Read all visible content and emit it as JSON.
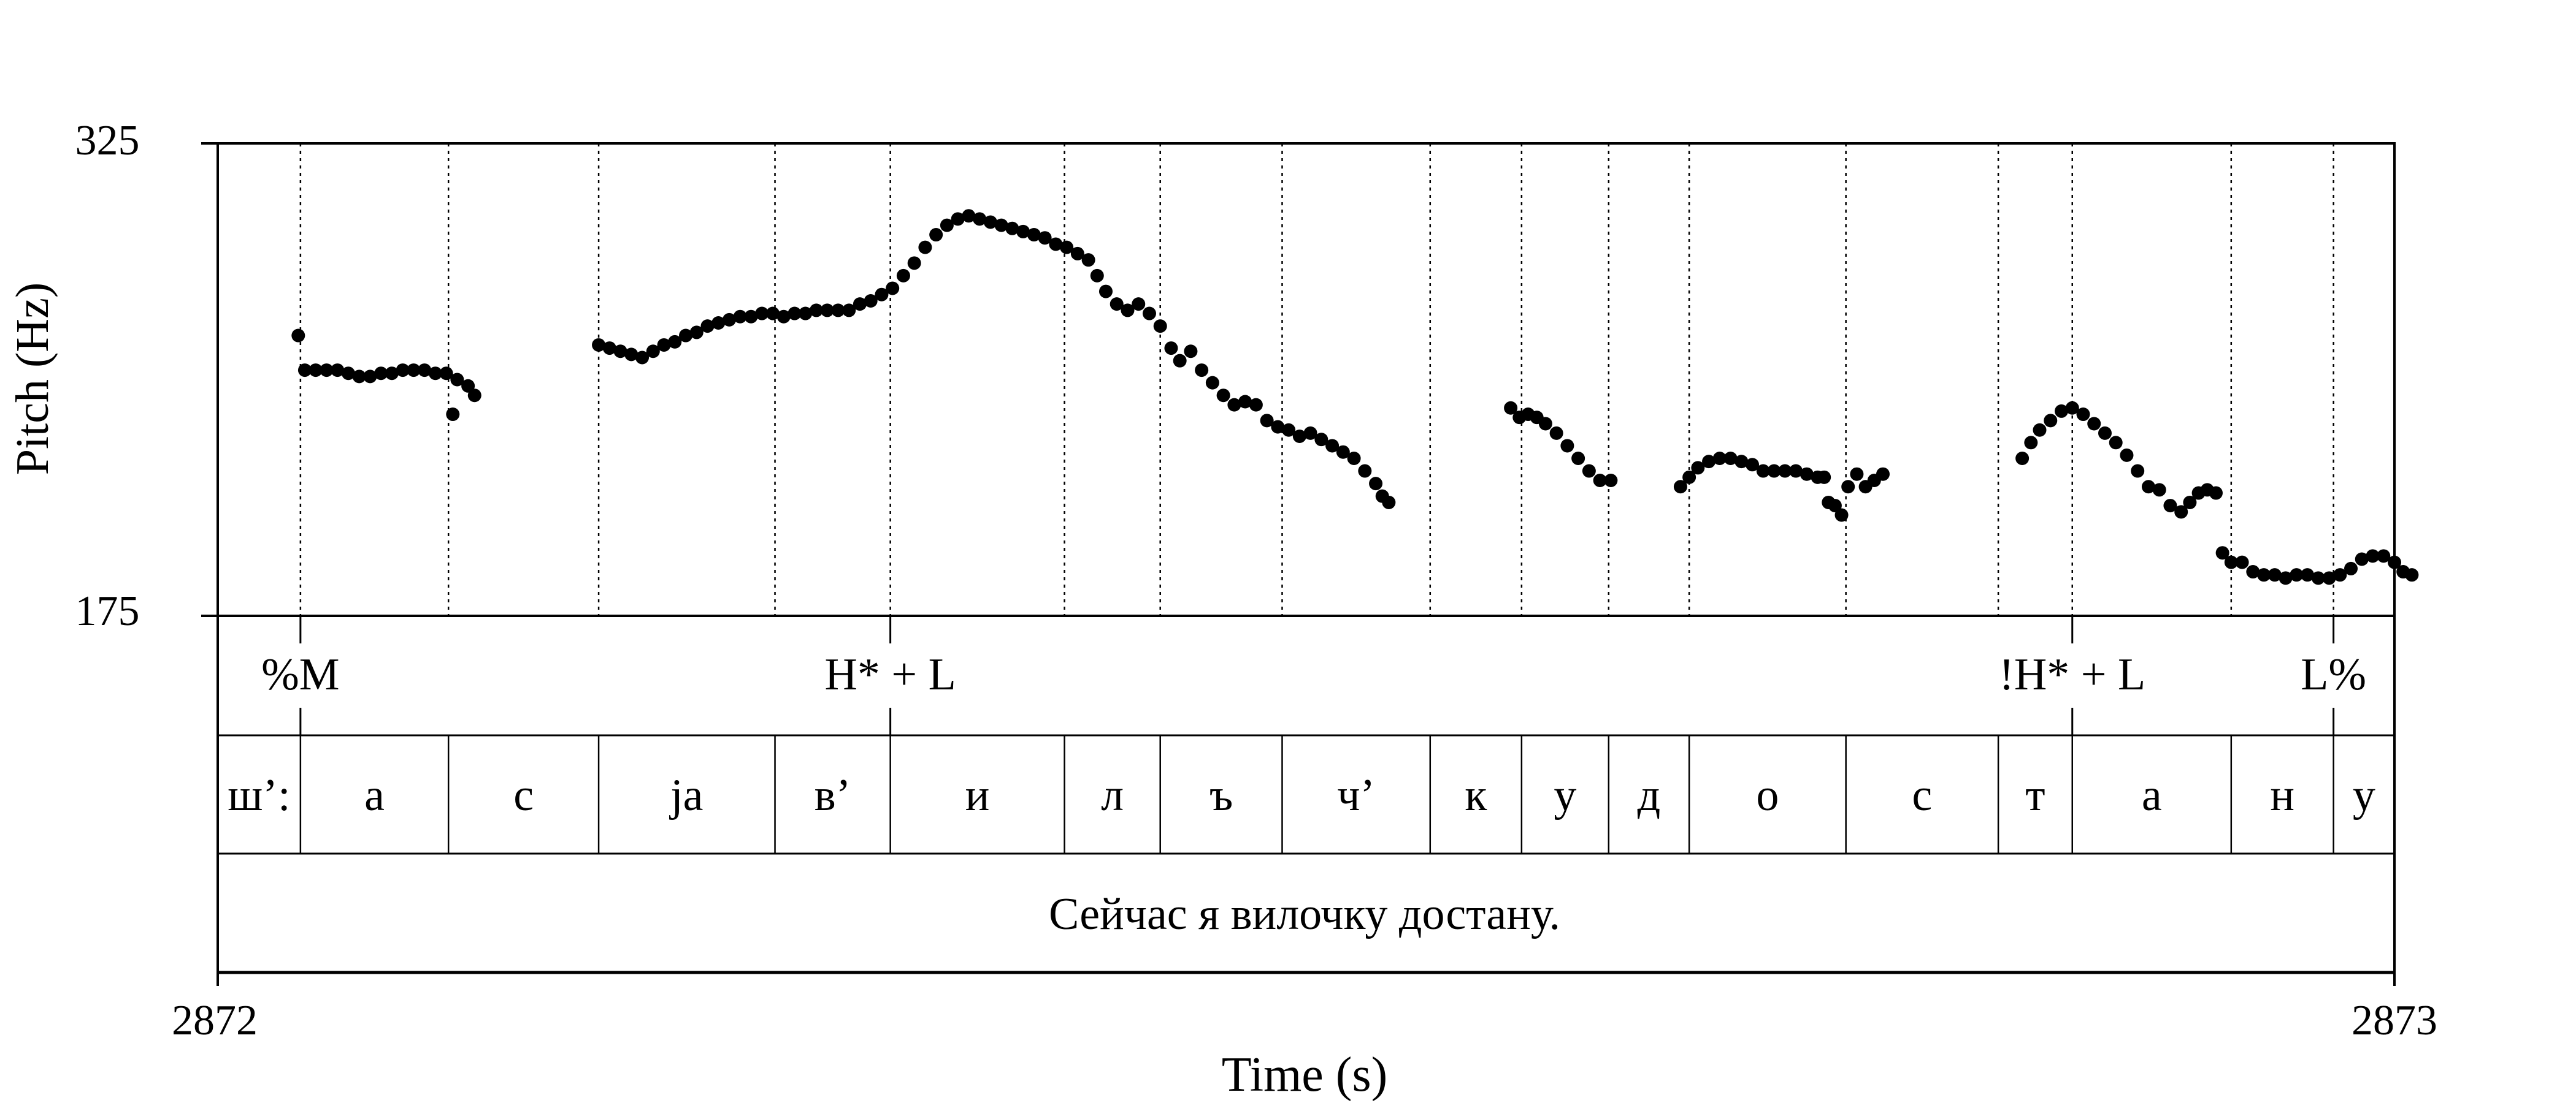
{
  "chart_data": {
    "type": "scatter",
    "xlabel": "Time (s)",
    "ylabel": "Pitch (Hz)",
    "xlim": [
      2872,
      2873
    ],
    "ylim": [
      175,
      325
    ],
    "x_tick_labels": [
      "2872",
      "2873"
    ],
    "y_tick_labels": [
      "325",
      "175"
    ],
    "series": [
      {
        "values": [
          [
            0.037,
            264
          ],
          [
            0.04,
            253
          ],
          [
            0.045,
            253
          ],
          [
            0.05,
            253
          ],
          [
            0.055,
            253
          ],
          [
            0.06,
            252
          ],
          [
            0.065,
            251
          ],
          [
            0.07,
            251
          ],
          [
            0.075,
            252
          ],
          [
            0.08,
            252
          ],
          [
            0.085,
            253
          ],
          [
            0.09,
            253
          ],
          [
            0.095,
            253
          ],
          [
            0.1,
            252
          ],
          [
            0.105,
            252
          ],
          [
            0.11,
            250
          ],
          [
            0.115,
            248
          ],
          [
            0.118,
            245
          ],
          [
            0.108,
            239
          ],
          [
            0.175,
            261
          ],
          [
            0.18,
            260
          ],
          [
            0.185,
            259
          ],
          [
            0.19,
            258
          ],
          [
            0.195,
            257
          ],
          [
            0.2,
            259
          ],
          [
            0.205,
            261
          ],
          [
            0.21,
            262
          ],
          [
            0.215,
            264
          ],
          [
            0.22,
            265
          ],
          [
            0.225,
            267
          ],
          [
            0.23,
            268
          ],
          [
            0.235,
            269
          ],
          [
            0.24,
            270
          ],
          [
            0.245,
            270
          ],
          [
            0.25,
            271
          ],
          [
            0.255,
            271
          ],
          [
            0.26,
            270
          ],
          [
            0.265,
            271
          ],
          [
            0.27,
            271
          ],
          [
            0.275,
            272
          ],
          [
            0.28,
            272
          ],
          [
            0.285,
            272
          ],
          [
            0.29,
            272
          ],
          [
            0.295,
            274
          ],
          [
            0.3,
            275
          ],
          [
            0.305,
            277
          ],
          [
            0.31,
            279
          ],
          [
            0.315,
            283
          ],
          [
            0.32,
            287
          ],
          [
            0.325,
            292
          ],
          [
            0.33,
            296
          ],
          [
            0.335,
            299
          ],
          [
            0.34,
            301
          ],
          [
            0.345,
            302
          ],
          [
            0.35,
            301
          ],
          [
            0.355,
            300
          ],
          [
            0.36,
            299
          ],
          [
            0.365,
            298
          ],
          [
            0.37,
            297
          ],
          [
            0.375,
            296
          ],
          [
            0.38,
            295
          ],
          [
            0.385,
            293
          ],
          [
            0.39,
            292
          ],
          [
            0.395,
            290
          ],
          [
            0.4,
            288
          ],
          [
            0.404,
            283
          ],
          [
            0.408,
            278
          ],
          [
            0.413,
            274
          ],
          [
            0.418,
            272
          ],
          [
            0.423,
            274
          ],
          [
            0.428,
            271
          ],
          [
            0.433,
            267
          ],
          [
            0.438,
            260
          ],
          [
            0.442,
            256
          ],
          [
            0.447,
            259
          ],
          [
            0.452,
            253
          ],
          [
            0.457,
            249
          ],
          [
            0.462,
            245
          ],
          [
            0.467,
            242
          ],
          [
            0.472,
            243
          ],
          [
            0.477,
            242
          ],
          [
            0.482,
            237
          ],
          [
            0.487,
            235
          ],
          [
            0.492,
            234
          ],
          [
            0.497,
            232
          ],
          [
            0.502,
            233
          ],
          [
            0.507,
            231
          ],
          [
            0.512,
            229
          ],
          [
            0.517,
            227
          ],
          [
            0.522,
            225
          ],
          [
            0.527,
            221
          ],
          [
            0.532,
            217
          ],
          [
            0.535,
            213
          ],
          [
            0.538,
            211
          ],
          [
            0.594,
            241
          ],
          [
            0.598,
            238
          ],
          [
            0.602,
            239
          ],
          [
            0.606,
            238
          ],
          [
            0.61,
            236
          ],
          [
            0.615,
            233
          ],
          [
            0.62,
            229
          ],
          [
            0.625,
            225
          ],
          [
            0.63,
            221
          ],
          [
            0.635,
            218
          ],
          [
            0.64,
            218
          ],
          [
            0.672,
            216
          ],
          [
            0.676,
            219
          ],
          [
            0.68,
            222
          ],
          [
            0.685,
            224
          ],
          [
            0.69,
            225
          ],
          [
            0.695,
            225
          ],
          [
            0.7,
            224
          ],
          [
            0.705,
            223
          ],
          [
            0.71,
            221
          ],
          [
            0.715,
            221
          ],
          [
            0.72,
            221
          ],
          [
            0.725,
            221
          ],
          [
            0.73,
            220
          ],
          [
            0.735,
            219
          ],
          [
            0.738,
            219
          ],
          [
            0.74,
            211
          ],
          [
            0.743,
            210
          ],
          [
            0.746,
            207
          ],
          [
            0.749,
            216
          ],
          [
            0.753,
            220
          ],
          [
            0.757,
            216
          ],
          [
            0.761,
            218
          ],
          [
            0.765,
            220
          ],
          [
            0.829,
            225
          ],
          [
            0.833,
            230
          ],
          [
            0.837,
            234
          ],
          [
            0.842,
            237
          ],
          [
            0.847,
            240
          ],
          [
            0.852,
            241
          ],
          [
            0.857,
            239
          ],
          [
            0.862,
            236
          ],
          [
            0.867,
            233
          ],
          [
            0.872,
            230
          ],
          [
            0.877,
            226
          ],
          [
            0.882,
            221
          ],
          [
            0.887,
            216
          ],
          [
            0.892,
            215
          ],
          [
            0.897,
            210
          ],
          [
            0.902,
            208
          ],
          [
            0.906,
            211
          ],
          [
            0.91,
            214
          ],
          [
            0.914,
            215
          ],
          [
            0.918,
            214
          ],
          [
            0.921,
            195
          ],
          [
            0.925,
            192
          ],
          [
            0.93,
            192
          ],
          [
            0.935,
            189
          ],
          [
            0.94,
            188
          ],
          [
            0.945,
            188
          ],
          [
            0.95,
            187
          ],
          [
            0.955,
            188
          ],
          [
            0.96,
            188
          ],
          [
            0.965,
            187
          ],
          [
            0.97,
            187
          ],
          [
            0.975,
            188
          ],
          [
            0.98,
            190
          ],
          [
            0.985,
            193
          ],
          [
            0.99,
            194
          ],
          [
            0.995,
            194
          ],
          [
            1.0,
            192
          ],
          [
            1.004,
            189
          ],
          [
            1.008,
            188
          ]
        ]
      }
    ],
    "segment_boundaries": [
      0.038,
      0.106,
      0.175,
      0.256,
      0.309,
      0.389,
      0.433,
      0.489,
      0.557,
      0.599,
      0.639,
      0.676,
      0.748,
      0.818,
      0.852,
      0.925,
      0.972
    ],
    "tiers": {
      "tones": [
        {
          "label": "%M",
          "t": 0.038
        },
        {
          "label": "H* + L",
          "t": 0.309
        },
        {
          "label": "!H* + L",
          "t": 0.852
        },
        {
          "label": "L%",
          "t": 0.972
        }
      ],
      "segments": [
        "ш’:",
        "а",
        "с",
        "jа",
        "в’",
        "и",
        "л",
        "ъ",
        "ч’",
        "к",
        "у",
        "д",
        "о",
        "с",
        "т",
        "а",
        "н",
        "у"
      ],
      "sentence": "Сейчас я вилочку достану."
    }
  }
}
